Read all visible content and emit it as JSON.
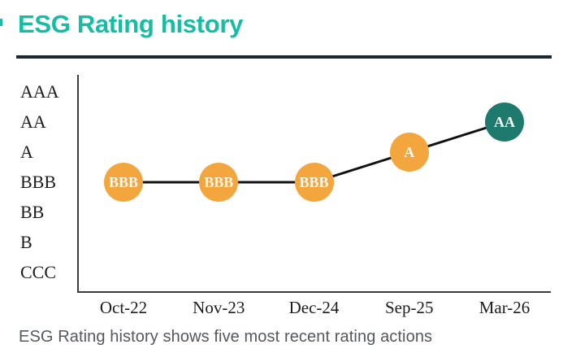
{
  "page": {
    "title": "ESG Rating history",
    "caption": "ESG Rating history shows five most recent rating actions"
  },
  "colors": {
    "title_text": "#16BCA4",
    "divider": "#1B2834",
    "edge_mark": "#16BCA4",
    "axis": "#3c3c3c",
    "series_line": "#111111",
    "orange_point": "#F3A63D",
    "teal_point": "#1F7A6E",
    "point_label_text": "#FCF7EC",
    "axis_label_text": "#1c1c1c",
    "caption_text": "#55585C"
  },
  "chart_data": {
    "type": "line",
    "title": "ESG Rating history",
    "xlabel": "",
    "ylabel": "",
    "grid": false,
    "legend_position": "none",
    "x_categories": [
      "Oct-22",
      "Nov-23",
      "Dec-24",
      "Sep-25",
      "Mar-26"
    ],
    "y_scale_top_to_bottom": [
      "AAA",
      "AA",
      "A",
      "BBB",
      "BB",
      "B",
      "CCC"
    ],
    "series": [
      {
        "name": "ESG Rating",
        "points": [
          {
            "x": "Oct-22",
            "rating": "BBB",
            "color_key": "orange_point"
          },
          {
            "x": "Nov-23",
            "rating": "BBB",
            "color_key": "orange_point"
          },
          {
            "x": "Dec-24",
            "rating": "BBB",
            "color_key": "orange_point"
          },
          {
            "x": "Sep-25",
            "rating": "A",
            "color_key": "orange_point"
          },
          {
            "x": "Mar-26",
            "rating": "AA",
            "color_key": "teal_point"
          }
        ]
      }
    ]
  }
}
